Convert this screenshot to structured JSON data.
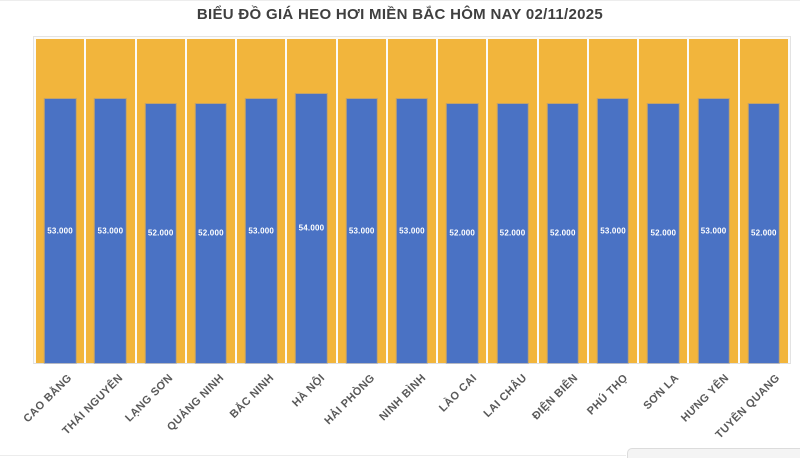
{
  "title": "BIỂU ĐỒ GIÁ HEO HƠI MIỀN BẮC HÔM NAY 02/11/2025",
  "chart_data": {
    "type": "bar",
    "title": "BIỂU ĐỒ GIÁ HEO HƠI MIỀN BẮC HÔM NAY 02/11/2025",
    "categories": [
      "CAO BẰNG",
      "THÁI NGUYÊN",
      "LẠNG SƠN",
      "QUẢNG NINH",
      "BẮC NINH",
      "HÀ NỘI",
      "HẢI PHÒNG",
      "NINH BÌNH",
      "LÀO CAI",
      "LAI CHÂU",
      "ĐIỆN BIÊN",
      "PHÚ THỌ",
      "SƠN LA",
      "HƯNG YÊN",
      "TUYÊN QUANG"
    ],
    "values": [
      53000,
      53000,
      52000,
      52000,
      53000,
      54000,
      53000,
      53000,
      52000,
      52000,
      52000,
      53000,
      52000,
      53000,
      52000
    ],
    "value_labels": [
      "53.000",
      "53.000",
      "52.000",
      "52.000",
      "53.000",
      "54.000",
      "53.000",
      "53.000",
      "52.000",
      "52.000",
      "52.000",
      "53.000",
      "52.000",
      "53.000",
      "52.000"
    ],
    "xlabel": "",
    "ylabel": "",
    "ylim": [
      0,
      65000
    ],
    "grid": false,
    "legend_position": "none",
    "bar_color": "#4A72C4",
    "background_bar_color": "#F2B53C",
    "value_label_color": "#FFFFFF",
    "axis_label_color": "#595959",
    "title_color": "#3F3F3F"
  }
}
